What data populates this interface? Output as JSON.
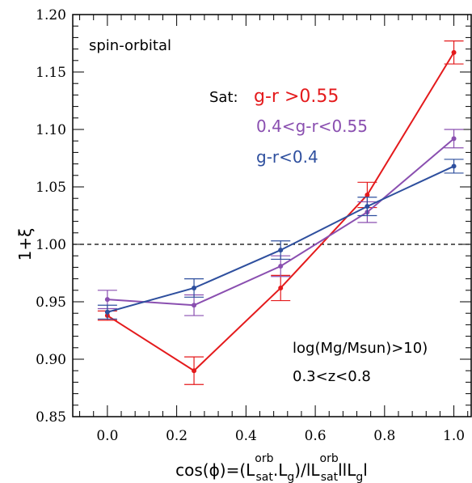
{
  "chart_data": {
    "type": "line",
    "title": "",
    "xlim": [
      -0.1,
      1.05
    ],
    "ylim": [
      0.85,
      1.2
    ],
    "xticks": [
      0.0,
      0.2,
      0.4,
      0.6,
      0.8,
      1.0
    ],
    "xtick_labels": [
      "0.0",
      "0.2",
      "0.4",
      "0.6",
      "0.8",
      "1.0"
    ],
    "yticks": [
      0.85,
      0.9,
      0.95,
      1.0,
      1.05,
      1.1,
      1.15,
      1.2
    ],
    "ytick_labels": [
      "0.85",
      "0.90",
      "0.95",
      "1.00",
      "1.05",
      "1.10",
      "1.15",
      "1.20"
    ],
    "ylabel": "1+ξ",
    "xlabel": {
      "p1": "cos(ϕ)=(L",
      "sup1": "orb",
      "sub1": "sat",
      "p2": ".L",
      "sub2": "g",
      "p3": ")/lL",
      "sup2": "orb",
      "sub3": "sat",
      "p4": "llL",
      "sub4": "g",
      "p5": "l"
    },
    "reference_line": {
      "y": 1.0,
      "style": "dashed",
      "color": "#000000"
    },
    "annotations": {
      "panel_label": "spin-orbital",
      "legend_title": "Sat:",
      "mass_cut": "log(Mg/Msun)>10)",
      "redshift_cut": "0.3<z<0.8"
    },
    "x": [
      0.0,
      0.25,
      0.5,
      0.75,
      1.0
    ],
    "series": [
      {
        "name": "g-r >0.55",
        "color": "#e41a1c",
        "values": [
          0.938,
          0.89,
          0.962,
          1.043,
          1.167
        ],
        "errors": [
          0.004,
          0.012,
          0.011,
          0.011,
          0.01
        ]
      },
      {
        "name": "0.4<g-r<0.55",
        "color": "#8a4fb0",
        "values": [
          0.952,
          0.947,
          0.981,
          1.028,
          1.092
        ],
        "errors": [
          0.008,
          0.009,
          0.009,
          0.009,
          0.008
        ]
      },
      {
        "name": "g-r<0.4",
        "color": "#2e4f9e",
        "values": [
          0.941,
          0.962,
          0.995,
          1.033,
          1.068
        ],
        "errors": [
          0.006,
          0.008,
          0.008,
          0.008,
          0.006
        ]
      }
    ]
  }
}
